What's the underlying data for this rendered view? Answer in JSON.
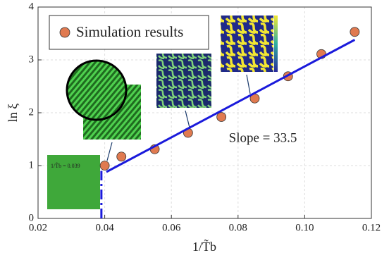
{
  "chart_data": {
    "type": "scatter",
    "xlabel": "1/T̃b",
    "ylabel": "ln ξ",
    "xlim": [
      0.02,
      0.12
    ],
    "xticks": [
      {
        "value": 0.02,
        "label": "0.02"
      },
      {
        "value": 0.04,
        "label": "0.04"
      },
      {
        "value": 0.06,
        "label": "0.06"
      },
      {
        "value": 0.08,
        "label": "0.08"
      },
      {
        "value": 0.1,
        "label": "0.10"
      },
      {
        "value": 0.12,
        "label": "0.12"
      }
    ],
    "ylim": [
      0,
      4
    ],
    "yticks": [
      0,
      1,
      2,
      3,
      4
    ],
    "grid": true,
    "series": [
      {
        "name": "Simulation results",
        "color": "#e07a50",
        "x": [
          0.04,
          0.045,
          0.055,
          0.065,
          0.075,
          0.085,
          0.095,
          0.105,
          0.115
        ],
        "values": [
          1.0,
          1.17,
          1.31,
          1.62,
          1.92,
          2.27,
          2.69,
          3.11,
          3.53
        ]
      },
      {
        "color": "#1a1adb",
        "x": [
          0.0405,
          0.115
        ],
        "values": [
          0.88,
          3.38
        ]
      },
      {
        "color": "#1a1adb",
        "x": [
          0.039,
          0.039
        ],
        "values": [
          0,
          0.9
        ],
        "dashed": true
      }
    ],
    "annotations": [
      "Slope = 33.5",
      "1/T̃b = 0.039"
    ]
  }
}
